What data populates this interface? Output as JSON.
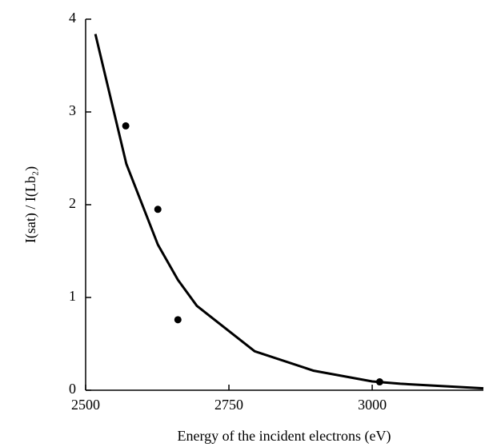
{
  "chart_data": {
    "type": "line",
    "xlabel": "Energy of the incident electrons (eV)",
    "ylabel": "I(sat) / I(Lb₂)",
    "xlim": [
      2500,
      3194
    ],
    "xticks": [
      2500,
      2750,
      3000
    ],
    "ylim": [
      0,
      4
    ],
    "yticks": [
      0,
      1,
      2,
      3,
      4
    ],
    "series": [
      {
        "type": "line",
        "color": "#000000",
        "x": [
          2517,
          2571,
          2626,
          2661,
          2694,
          2795,
          2898,
          3000,
          3049,
          3194
        ],
        "values": [
          3.84,
          2.44,
          1.57,
          1.19,
          0.91,
          0.42,
          0.21,
          0.095,
          0.07,
          0.02
        ]
      },
      {
        "type": "scatter",
        "color": "#000000",
        "x": [
          2570,
          2626,
          2661,
          3013
        ],
        "values": [
          2.85,
          1.95,
          0.76,
          0.09
        ]
      }
    ]
  }
}
